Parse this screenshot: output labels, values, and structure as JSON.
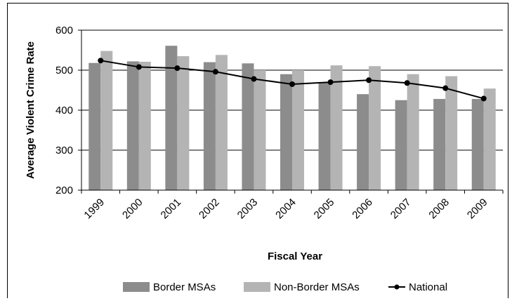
{
  "chart_data": {
    "type": "bar",
    "categories": [
      "1999",
      "2000",
      "2001",
      "2002",
      "2003",
      "2004",
      "2005",
      "2006",
      "2007",
      "2008",
      "2009"
    ],
    "series": [
      {
        "name": "Border MSAs",
        "type": "bar",
        "color": "#8c8c8c",
        "values": [
          518,
          522,
          561,
          520,
          517,
          490,
          468,
          440,
          425,
          428,
          428
        ]
      },
      {
        "name": "Non-Border MSAs",
        "type": "bar",
        "color": "#b4b4b4",
        "values": [
          548,
          521,
          535,
          538,
          500,
          500,
          512,
          510,
          490,
          485,
          454
        ]
      },
      {
        "name": "National",
        "type": "line",
        "color": "#000000",
        "values": [
          524,
          508,
          505,
          496,
          478,
          465,
          470,
          475,
          468,
          455,
          429
        ]
      }
    ],
    "xlabel": "Fiscal Year",
    "ylabel": "Average Violent Crime Rate",
    "ylim": [
      200,
      600
    ],
    "yticks": [
      "200",
      "300",
      "400",
      "500",
      "600"
    ],
    "grid": true,
    "legend_position": "bottom"
  }
}
